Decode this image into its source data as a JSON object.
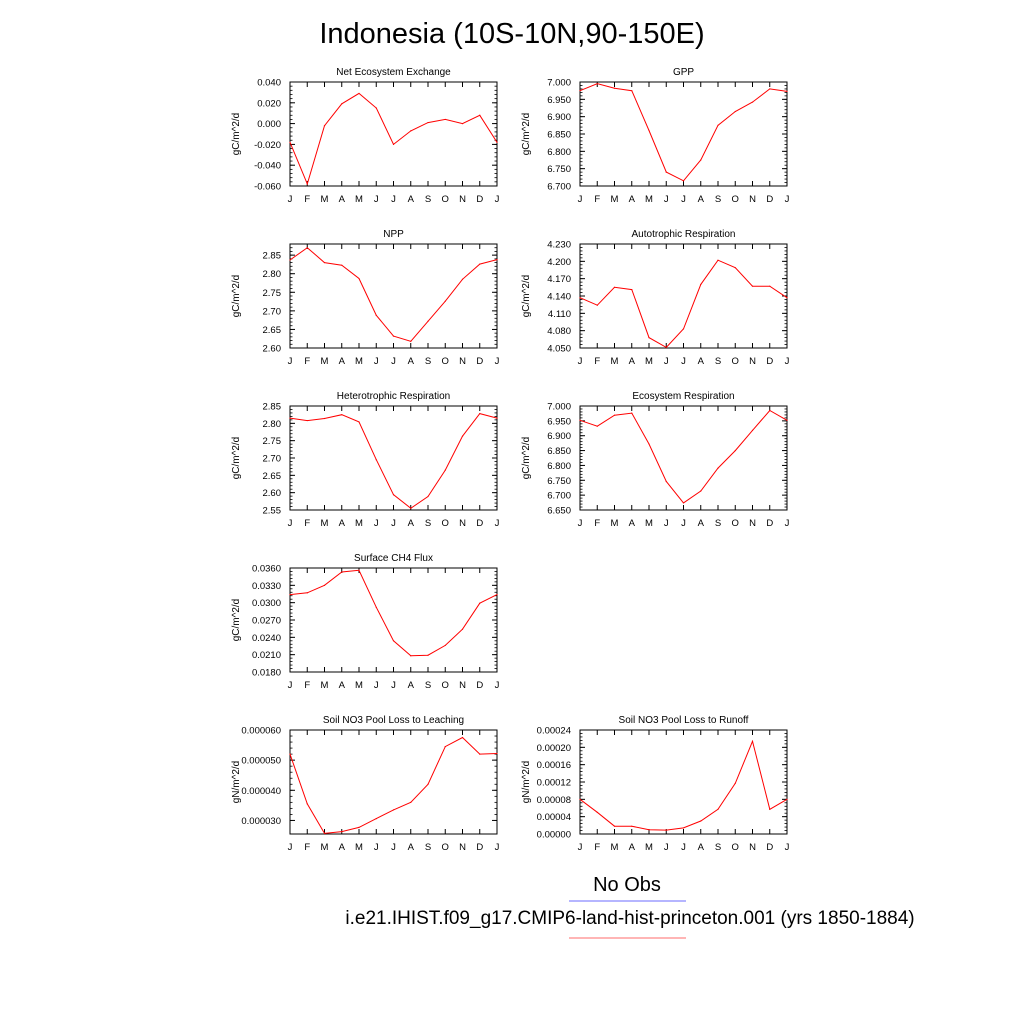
{
  "page_title": "Indonesia (10S-10N,90-150E)",
  "legend": {
    "entries": [
      {
        "label": "No Obs",
        "color": "#6b6bff"
      },
      {
        "label": "i.e21.IHIST.f09_g17.CMIP6-land-hist-princeton.001 (yrs 1850-1884)",
        "color": "#ff6b6b"
      }
    ]
  },
  "series_color": "#ff0000",
  "chart_data": [
    {
      "type": "line",
      "title": "Net Ecosystem Exchange",
      "ylabel": "gC/m^2/d",
      "categories": [
        "J",
        "F",
        "M",
        "A",
        "M",
        "J",
        "J",
        "A",
        "S",
        "O",
        "N",
        "D",
        "J"
      ],
      "ylim": [
        -0.06,
        0.04
      ],
      "yticks": [
        "0.040",
        "0.020",
        "0.000",
        "-0.020",
        "-0.040",
        "-0.060"
      ],
      "values": [
        -0.018,
        -0.058,
        -0.002,
        0.019,
        0.029,
        0.015,
        -0.02,
        -0.007,
        0.001,
        0.004,
        0.0,
        0.008,
        -0.018
      ]
    },
    {
      "type": "line",
      "title": "GPP",
      "ylabel": "gC/m^2/d",
      "categories": [
        "J",
        "F",
        "M",
        "A",
        "M",
        "J",
        "J",
        "A",
        "S",
        "O",
        "N",
        "D",
        "J"
      ],
      "ylim": [
        6.7,
        7.0
      ],
      "yticks": [
        "7.000",
        "6.950",
        "6.900",
        "6.850",
        "6.800",
        "6.750",
        "6.700"
      ],
      "values": [
        6.975,
        6.995,
        6.982,
        6.975,
        6.86,
        6.74,
        6.715,
        6.775,
        6.875,
        6.915,
        6.942,
        6.98,
        6.973
      ]
    },
    {
      "type": "line",
      "title": "NPP",
      "ylabel": "gC/m^2/d",
      "categories": [
        "J",
        "F",
        "M",
        "A",
        "M",
        "J",
        "J",
        "A",
        "S",
        "O",
        "N",
        "D",
        "J"
      ],
      "ylim": [
        2.6,
        2.88
      ],
      "yticks": [
        "2.85",
        "2.80",
        "2.75",
        "2.70",
        "2.65",
        "2.60"
      ],
      "values": [
        2.837,
        2.87,
        2.83,
        2.823,
        2.787,
        2.688,
        2.632,
        2.618,
        2.672,
        2.726,
        2.785,
        2.826,
        2.838
      ]
    },
    {
      "type": "line",
      "title": "Autotrophic Respiration",
      "ylabel": "gC/m^2/d",
      "categories": [
        "J",
        "F",
        "M",
        "A",
        "M",
        "J",
        "J",
        "A",
        "S",
        "O",
        "N",
        "D",
        "J"
      ],
      "ylim": [
        4.05,
        4.23
      ],
      "yticks": [
        "4.230",
        "4.200",
        "4.170",
        "4.140",
        "4.110",
        "4.080",
        "4.050"
      ],
      "values": [
        4.137,
        4.124,
        4.155,
        4.151,
        4.068,
        4.051,
        4.083,
        4.16,
        4.202,
        4.189,
        4.157,
        4.157,
        4.137
      ]
    },
    {
      "type": "line",
      "title": "Heterotrophic Respiration",
      "ylabel": "gC/m^2/d",
      "categories": [
        "J",
        "F",
        "M",
        "A",
        "M",
        "J",
        "J",
        "A",
        "S",
        "O",
        "N",
        "D",
        "J"
      ],
      "ylim": [
        2.55,
        2.85
      ],
      "yticks": [
        "2.85",
        "2.80",
        "2.75",
        "2.70",
        "2.65",
        "2.60",
        "2.55"
      ],
      "values": [
        2.815,
        2.808,
        2.814,
        2.825,
        2.804,
        2.695,
        2.594,
        2.555,
        2.589,
        2.665,
        2.763,
        2.828,
        2.815
      ]
    },
    {
      "type": "line",
      "title": "Ecosystem Respiration",
      "ylabel": "gC/m^2/d",
      "categories": [
        "J",
        "F",
        "M",
        "A",
        "M",
        "J",
        "J",
        "A",
        "S",
        "O",
        "N",
        "D",
        "J"
      ],
      "ylim": [
        6.65,
        7.0
      ],
      "yticks": [
        "7.000",
        "6.950",
        "6.900",
        "6.850",
        "6.800",
        "6.750",
        "6.700",
        "6.650"
      ],
      "values": [
        6.952,
        6.932,
        6.969,
        6.976,
        6.872,
        6.746,
        6.674,
        6.714,
        6.791,
        6.85,
        6.918,
        6.985,
        6.952
      ]
    },
    {
      "type": "line",
      "title": "Surface CH4 Flux",
      "ylabel": "gC/m^2/d",
      "categories": [
        "J",
        "F",
        "M",
        "A",
        "M",
        "J",
        "J",
        "A",
        "S",
        "O",
        "N",
        "D",
        "J"
      ],
      "ylim": [
        0.018,
        0.036
      ],
      "yticks": [
        "0.0360",
        "0.0330",
        "0.0300",
        "0.0270",
        "0.0240",
        "0.0210",
        "0.0180"
      ],
      "values": [
        0.0314,
        0.0317,
        0.033,
        0.0353,
        0.0356,
        0.0292,
        0.0234,
        0.0208,
        0.0209,
        0.0226,
        0.0254,
        0.0299,
        0.0314
      ]
    },
    {
      "type": "line",
      "title": "Soil NO3 Pool Loss to Leaching",
      "ylabel": "gN/m^2/d",
      "categories": [
        "J",
        "F",
        "M",
        "A",
        "M",
        "J",
        "J",
        "A",
        "S",
        "O",
        "N",
        "D",
        "J"
      ],
      "ylim": [
        2.55e-05,
        6e-05
      ],
      "yticks": [
        "0.000060",
        "0.000050",
        "0.000040",
        "0.000030"
      ],
      "ytickvals": [
        6e-05,
        5e-05,
        4e-05,
        3e-05
      ],
      "values": [
        5.2e-05,
        3.55e-05,
        2.57e-05,
        2.63e-05,
        2.77e-05,
        3.06e-05,
        3.35e-05,
        3.6e-05,
        4.2e-05,
        5.45e-05,
        5.75e-05,
        5.2e-05,
        5.22e-05
      ]
    },
    {
      "type": "line",
      "title": "Soil NO3 Pool Loss to Runoff",
      "ylabel": "gN/m^2/d",
      "categories": [
        "J",
        "F",
        "M",
        "A",
        "M",
        "J",
        "J",
        "A",
        "S",
        "O",
        "N",
        "D",
        "J"
      ],
      "ylim": [
        0.0,
        0.00024
      ],
      "yticks": [
        "0.00024",
        "0.00020",
        "0.00016",
        "0.00012",
        "0.00008",
        "0.00004",
        "0.00000"
      ],
      "values": [
        8e-05,
        5e-05,
        1.8e-05,
        1.8e-05,
        1e-05,
        9e-06,
        1.4e-05,
        3e-05,
        5.7e-05,
        0.000117,
        0.000214,
        5.7e-05,
        8e-05
      ]
    }
  ]
}
